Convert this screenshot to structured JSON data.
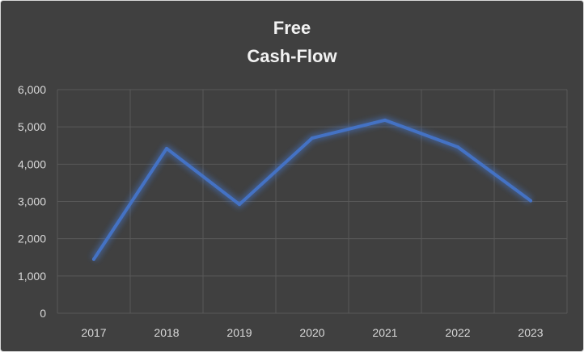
{
  "chart_data": {
    "type": "line",
    "title": [
      "Free",
      "Cash-Flow"
    ],
    "xlabel": "",
    "ylabel": "",
    "categories": [
      "2017",
      "2018",
      "2019",
      "2020",
      "2021",
      "2022",
      "2023"
    ],
    "y_tick_labels": [
      "0",
      "1,000",
      "2,000",
      "3,000",
      "4,000",
      "5,000",
      "6,000"
    ],
    "ylim": [
      0,
      6000
    ],
    "grid": true,
    "legend": "none",
    "series": [
      {
        "values": [
          1450,
          4420,
          2920,
          4700,
          5180,
          4460,
          3020
        ],
        "color": "#4472c4"
      }
    ],
    "colors": {
      "background": "#404040",
      "grid": "#595959",
      "line": "#4472c4",
      "text": "#d9d9d9"
    }
  }
}
